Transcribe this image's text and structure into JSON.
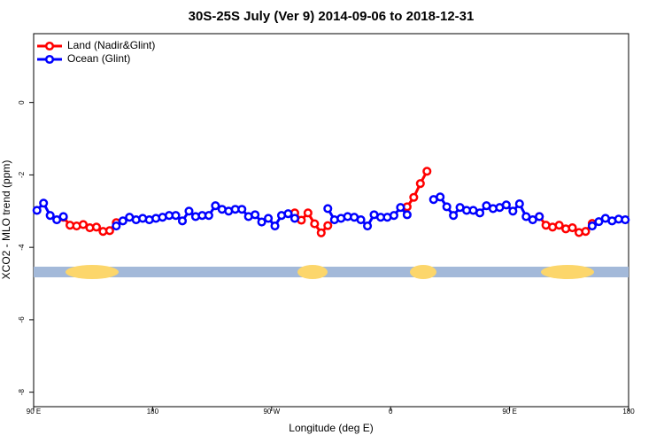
{
  "chart_data": {
    "type": "line",
    "title": "30S-25S July (Ver 9)   2014-09-06 to 2018-12-31",
    "x_label": "Longitude (deg E)",
    "y_label": "XCO2 - MLO trend (ppm)",
    "x": [
      92.5,
      97.5,
      102.5,
      107.5,
      112.5,
      117.5,
      122.5,
      127.5,
      132.5,
      137.5,
      142.5,
      147.5,
      152.5,
      157.5,
      162.5,
      167.5,
      172.5,
      177.5,
      182.5,
      187.5,
      192.5,
      197.5,
      202.5,
      207.5,
      212.5,
      217.5,
      222.5,
      227.5,
      232.5,
      237.5,
      242.5,
      247.5,
      252.5,
      257.5,
      262.5,
      267.5,
      272.5,
      277.5,
      282.5,
      287.5,
      292.5,
      297.5,
      302.5,
      307.5,
      312.5,
      317.5,
      322.5,
      327.5,
      332.5,
      337.5,
      342.5,
      347.5,
      352.5,
      357.5,
      362.5,
      367.5,
      372.5,
      377.5,
      382.5,
      387.5,
      392.5,
      397.5,
      402.5,
      407.5,
      412.5,
      417.5,
      422.5,
      427.5,
      432.5,
      437.5,
      442.5,
      447.5,
      452.5,
      457.5,
      462.5,
      467.5,
      472.5,
      477.5,
      482.5,
      487.5,
      492.5,
      497.5,
      502.5,
      507.5,
      512.5,
      517.5,
      522.5,
      527.5,
      532.5,
      537.5
    ],
    "series": [
      {
        "name": "Land (Nadir&Glint)",
        "color": "#ff0000",
        "values": [
          null,
          null,
          null,
          null,
          -3.17,
          -3.39,
          -3.41,
          -3.37,
          -3.46,
          -3.44,
          -3.56,
          -3.54,
          -3.32,
          null,
          null,
          null,
          null,
          null,
          null,
          null,
          null,
          null,
          null,
          null,
          null,
          null,
          null,
          null,
          null,
          null,
          null,
          null,
          null,
          null,
          null,
          null,
          null,
          null,
          null,
          -3.05,
          -3.25,
          -3.05,
          -3.35,
          -3.6,
          -3.4,
          null,
          null,
          null,
          null,
          null,
          null,
          null,
          null,
          null,
          null,
          null,
          -2.88,
          -2.62,
          -2.24,
          -1.9,
          null,
          null,
          null,
          null,
          null,
          null,
          null,
          null,
          null,
          null,
          null,
          null,
          null,
          null,
          null,
          null,
          -3.15,
          -3.39,
          -3.44,
          -3.39,
          -3.49,
          -3.46,
          -3.59,
          -3.56,
          -3.34,
          null,
          null,
          null,
          null,
          null
        ]
      },
      {
        "name": "Ocean (Glint)",
        "color": "#0000ff",
        "values": [
          -2.98,
          -2.78,
          -3.12,
          -3.24,
          -3.15,
          null,
          null,
          null,
          null,
          null,
          null,
          null,
          -3.41,
          -3.27,
          -3.17,
          -3.24,
          -3.2,
          -3.24,
          -3.2,
          -3.17,
          -3.12,
          -3.12,
          -3.27,
          -3.0,
          -3.15,
          -3.12,
          -3.12,
          -2.85,
          -2.95,
          -3.0,
          -2.95,
          -2.95,
          -3.15,
          -3.1,
          -3.3,
          -3.2,
          -3.41,
          -3.12,
          -3.07,
          -3.2,
          null,
          null,
          null,
          null,
          -2.93,
          -3.24,
          -3.2,
          -3.15,
          -3.17,
          -3.24,
          -3.41,
          -3.1,
          -3.17,
          -3.17,
          -3.12,
          -2.9,
          -3.1,
          null,
          null,
          null,
          -2.68,
          -2.61,
          -2.88,
          -3.12,
          -2.9,
          -2.98,
          -2.98,
          -3.05,
          -2.85,
          -2.93,
          -2.9,
          -2.83,
          -3.0,
          -2.8,
          -3.15,
          -3.24,
          -3.15,
          null,
          null,
          null,
          null,
          null,
          null,
          null,
          -3.41,
          -3.29,
          -3.2,
          -3.27,
          -3.22,
          -3.24
        ]
      }
    ],
    "xlim": [
      90,
      540
    ],
    "xticks": [
      {
        "value": 90,
        "label": "90 E"
      },
      180,
      {
        "value": 270,
        "label": "90 W"
      },
      {
        "value": 360,
        "label": "0"
      },
      {
        "value": 450,
        "label": "90 E"
      },
      {
        "value": 540,
        "label": "180"
      }
    ],
    "ylim": [
      -8.4,
      1.9
    ],
    "yticks": [
      0,
      -2,
      -4,
      -6,
      -8
    ],
    "legend": "top-left"
  }
}
